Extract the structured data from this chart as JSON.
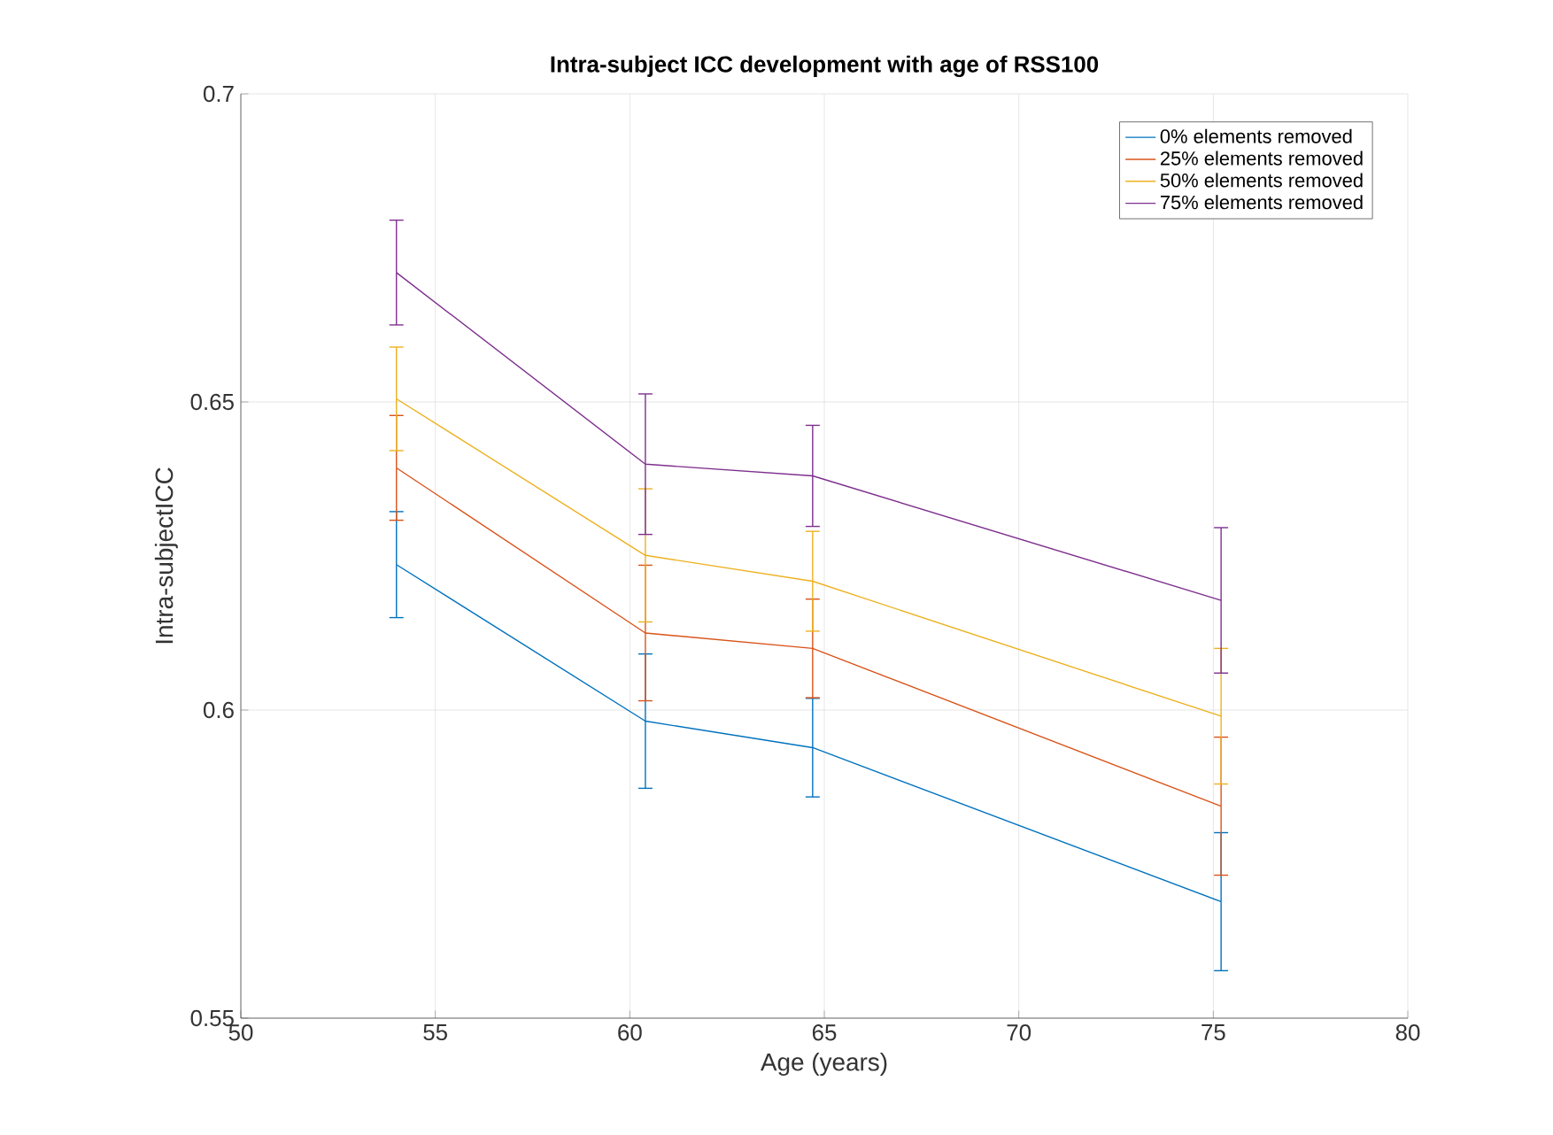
{
  "chart_data": {
    "type": "line",
    "title": "Intra-subject ICC development with age of RSS100",
    "xlabel": "Age (years)",
    "ylabel": "Intra-subjectICC",
    "x": [
      54.0,
      60.4,
      64.7,
      75.2
    ],
    "series": [
      {
        "name": "0% elements removed",
        "color": "#0072bd",
        "values": [
          0.6236,
          0.5982,
          0.5939,
          0.5689
        ],
        "errors": [
          0.0086,
          0.0109,
          0.008,
          0.0112
        ]
      },
      {
        "name": "25% elements removed",
        "color": "#d95319",
        "values": [
          0.6393,
          0.6125,
          0.61,
          0.5844
        ],
        "errors": [
          0.0085,
          0.011,
          0.008,
          0.0112
        ]
      },
      {
        "name": "50% elements removed",
        "color": "#edb120",
        "values": [
          0.6505,
          0.6251,
          0.6209,
          0.599
        ],
        "errors": [
          0.0084,
          0.0108,
          0.0081,
          0.011
        ]
      },
      {
        "name": "75% elements removed",
        "color": "#7e2f8e",
        "values": [
          0.671,
          0.6399,
          0.638,
          0.6178
        ],
        "errors": [
          0.0085,
          0.0114,
          0.0082,
          0.0118
        ]
      }
    ],
    "xlim": [
      50,
      80
    ],
    "xticks": [
      50,
      55,
      60,
      65,
      70,
      75,
      80
    ],
    "ylim": [
      0.55,
      0.7
    ],
    "yticks": [
      0.55,
      0.6,
      0.65,
      0.7
    ],
    "grid": true,
    "legend": "top right",
    "marker": "none",
    "line_style": "solid"
  }
}
